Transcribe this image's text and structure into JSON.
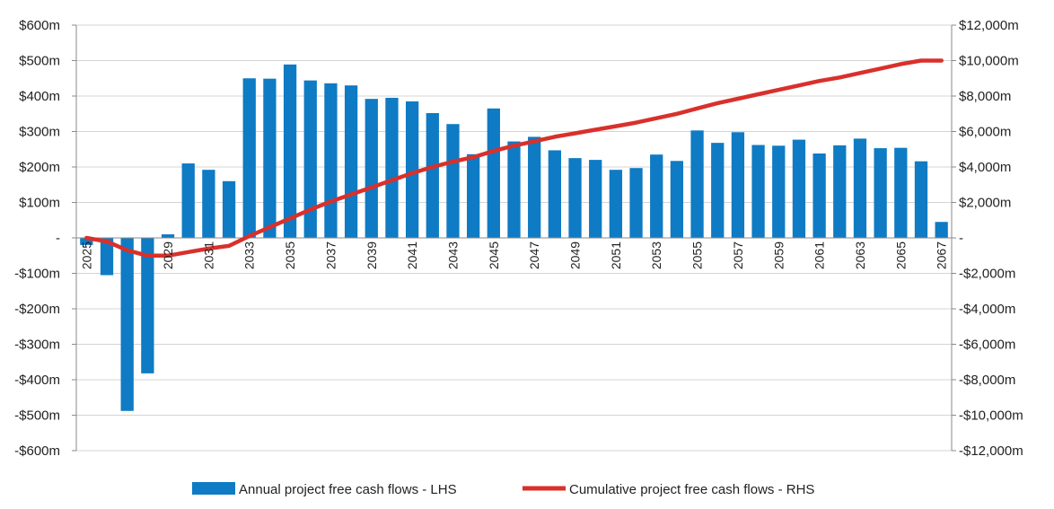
{
  "chart_data": {
    "type": "bar",
    "title": "",
    "xlabel": "",
    "ylabel": "",
    "ylim": [
      -600,
      600
    ],
    "y2lim": [
      -12000,
      12000
    ],
    "y_ticks": [
      600,
      500,
      400,
      300,
      200,
      100,
      0,
      -100,
      -200,
      -300,
      -400,
      -500,
      -600
    ],
    "y_tick_labels": [
      "$600m",
      "$500m",
      "$400m",
      "$300m",
      "$200m",
      "$100m",
      "-",
      "-$100m",
      "-$200m",
      "-$300m",
      "-$400m",
      "-$500m",
      "-$600m"
    ],
    "y2_ticks": [
      12000,
      10000,
      8000,
      6000,
      4000,
      2000,
      0,
      -2000,
      -4000,
      -6000,
      -8000,
      -10000,
      -12000
    ],
    "y2_tick_labels": [
      "$12,000m",
      "$10,000m",
      "$8,000m",
      "$6,000m",
      "$4,000m",
      "$2,000m",
      "-",
      "-$2,000m",
      "-$4,000m",
      "-$6,000m",
      "-$8,000m",
      "-$10,000m",
      "-$12,000m"
    ],
    "categories": [
      2025,
      2026,
      2027,
      2028,
      2029,
      2030,
      2031,
      2032,
      2033,
      2034,
      2035,
      2036,
      2037,
      2038,
      2039,
      2040,
      2041,
      2042,
      2043,
      2044,
      2045,
      2046,
      2047,
      2048,
      2049,
      2050,
      2051,
      2052,
      2053,
      2054,
      2055,
      2056,
      2057,
      2058,
      2059,
      2060,
      2061,
      2062,
      2063,
      2064,
      2065,
      2066,
      2067
    ],
    "x_tick_labels": [
      "2025",
      "",
      "",
      "",
      "2029",
      "",
      "2031",
      "",
      "2033",
      "",
      "2035",
      "",
      "2037",
      "",
      "2039",
      "",
      "2041",
      "",
      "2043",
      "",
      "2045",
      "",
      "2047",
      "",
      "2049",
      "",
      "2051",
      "",
      "2053",
      "",
      "2055",
      "",
      "2057",
      "",
      "2059",
      "",
      "2061",
      "",
      "2063",
      "",
      "2065",
      "",
      "2067"
    ],
    "series": [
      {
        "name": "Annual project free cash flows - LHS",
        "kind": "bar",
        "axis": "left",
        "color": "#0E7BC4",
        "values": [
          -20,
          -105,
          -488,
          -382,
          10,
          210,
          192,
          160,
          450,
          449,
          489,
          444,
          436,
          430,
          392,
          395,
          385,
          352,
          321,
          236,
          365,
          272,
          285,
          247,
          225,
          220,
          192,
          197,
          235,
          217,
          303,
          268,
          298,
          262,
          260,
          277,
          238,
          261,
          280,
          253,
          254,
          216,
          45
        ]
      },
      {
        "name": "Cumulative project free cash flows - RHS",
        "kind": "line",
        "axis": "right",
        "color": "#D9302C",
        "values": [
          0,
          -200,
          -700,
          -1000,
          -1000,
          -800,
          -600,
          -450,
          100,
          600,
          1100,
          1600,
          2050,
          2450,
          2850,
          3250,
          3650,
          4000,
          4300,
          4550,
          4900,
          5200,
          5450,
          5700,
          5900,
          6100,
          6300,
          6500,
          6750,
          7000,
          7300,
          7600,
          7850,
          8100,
          8350,
          8600,
          8850,
          9050,
          9300,
          9550,
          9800,
          10000,
          10000
        ]
      }
    ],
    "legend_position": "bottom-center",
    "grid": true
  }
}
